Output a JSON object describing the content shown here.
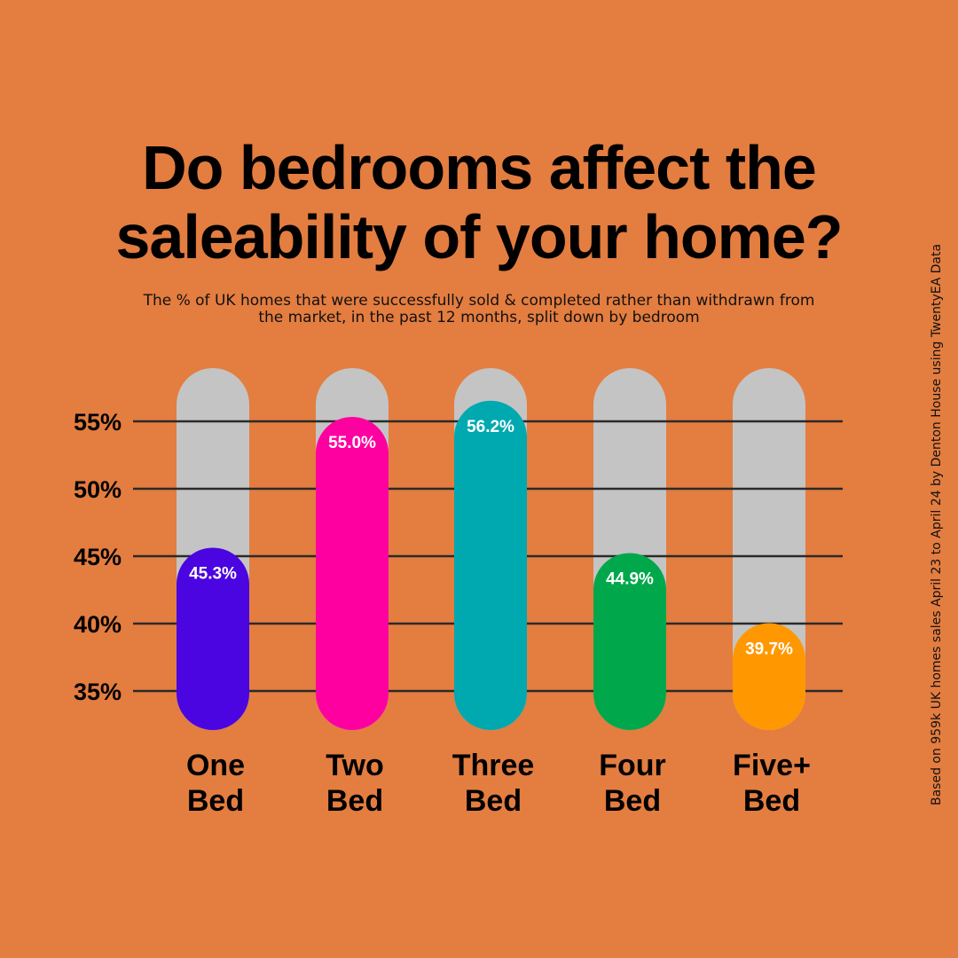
{
  "chart_data": {
    "type": "bar",
    "title_lines": [
      "Do bedrooms affect the",
      "saleability of your home?"
    ],
    "subtitle": "The % of UK homes that were successfully sold & completed rather than withdrawn from the market, in the past 12 months, split down by bedroom",
    "source_note": "Based on 959k UK homes sales April 23 to April 24 by Denton House using TwentyEA Data",
    "categories": [
      [
        "One",
        "Bed"
      ],
      [
        "Two",
        "Bed"
      ],
      [
        "Three",
        "Bed"
      ],
      [
        "Four",
        "Bed"
      ],
      [
        "Five+",
        "Bed"
      ]
    ],
    "values": [
      45.3,
      55.0,
      56.2,
      44.9,
      39.7
    ],
    "value_labels": [
      "45.3%",
      "55.0%",
      "56.2%",
      "44.9%",
      "39.7%"
    ],
    "colors": [
      "#4B05E0",
      "#FF00A0",
      "#00A8B0",
      "#00A84B",
      "#FF9800"
    ],
    "track_color": "#C4C4C4",
    "y_ticks": [
      35,
      40,
      45,
      50,
      55
    ],
    "y_tick_labels": [
      "35%",
      "40%",
      "45%",
      "50%",
      "55%"
    ],
    "ylim": [
      35,
      55
    ],
    "grid": true,
    "xlabel": "",
    "ylabel": ""
  }
}
